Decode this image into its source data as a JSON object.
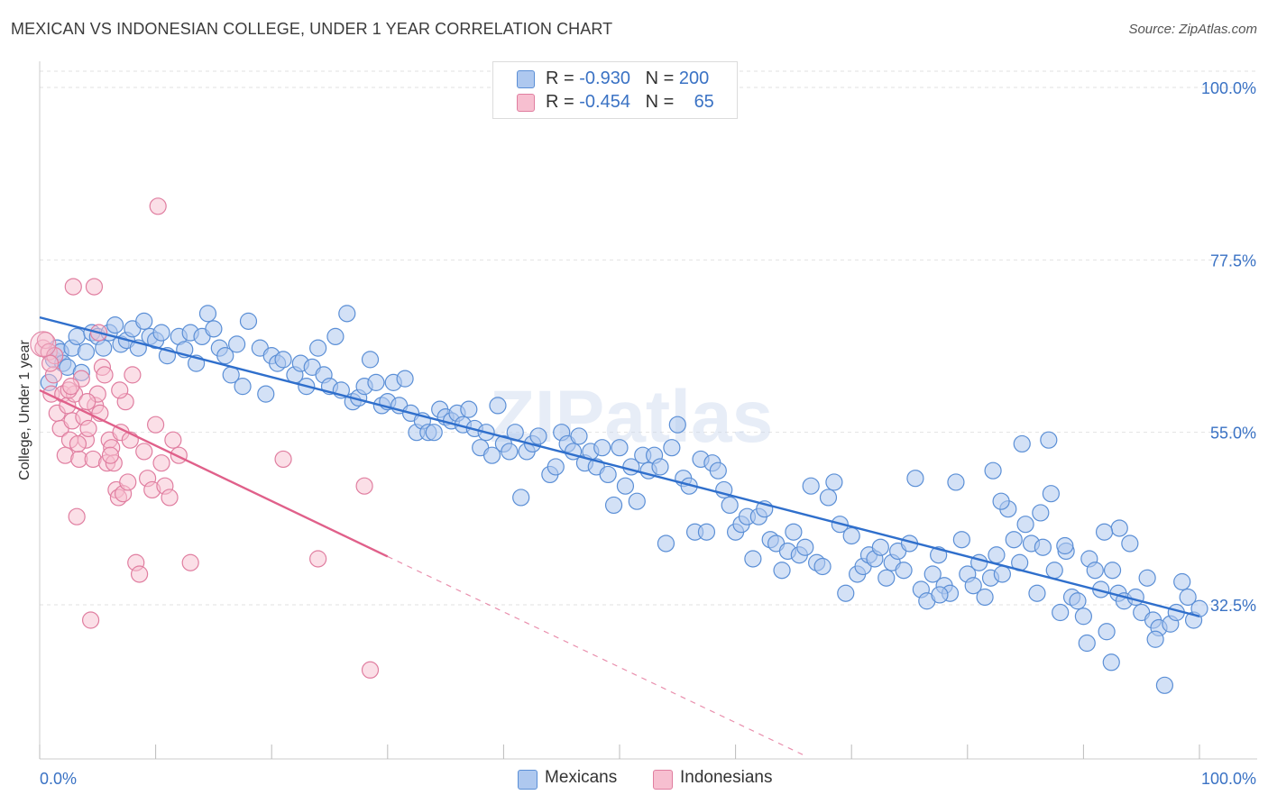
{
  "title": "MEXICAN VS INDONESIAN COLLEGE, UNDER 1 YEAR CORRELATION CHART",
  "source": "Source: ZipAtlas.com",
  "watermark": "ZIPatlas",
  "colors": {
    "blue_fill": "#aec8ef",
    "blue_stroke": "#5b8fd6",
    "blue_line": "#2f6fcc",
    "pink_fill": "#f7bfd0",
    "pink_stroke": "#e07ea0",
    "pink_line": "#e0608a",
    "axis_text_blue": "#3a72c4",
    "grid": "#e2e2e2"
  },
  "legend_top": [
    {
      "r_label": "R = ",
      "r_value": "-0.930",
      "n_label": "N = ",
      "n_value": "200",
      "series": "Mexicans"
    },
    {
      "r_label": "R = ",
      "r_value": "-0.454",
      "n_label": "N = ",
      "n_value": "65",
      "series": "Indonesians"
    }
  ],
  "legend_bottom": [
    "Mexicans",
    "Indonesians"
  ],
  "chart_data": {
    "type": "scatter",
    "title": "MEXICAN VS INDONESIAN COLLEGE, UNDER 1 YEAR CORRELATION CHART",
    "xlabel": "",
    "ylabel": "College, Under 1 year",
    "xlim": [
      0,
      100
    ],
    "ylim": [
      11.5,
      104
    ],
    "x_tick_labels": [
      "0.0%",
      "100.0%"
    ],
    "y_ticks": [
      100.0,
      77.5,
      55.0,
      32.5
    ],
    "y_tick_labels": [
      "100.0%",
      "77.5%",
      "55.0%",
      "32.5%"
    ],
    "grid": true,
    "legend": "top-center",
    "series": [
      {
        "name": "Mexicans",
        "r": -0.93,
        "n": 200,
        "trend": {
          "x": [
            0,
            100
          ],
          "y": [
            70.0,
            31.0
          ],
          "dashed_from": null
        },
        "points": [
          [
            0.8,
            61.5
          ],
          [
            1.2,
            64.5
          ],
          [
            1.5,
            66.0
          ],
          [
            1.8,
            65.5
          ],
          [
            2.0,
            64.0
          ],
          [
            2.4,
            63.5
          ],
          [
            2.8,
            66.0
          ],
          [
            3.2,
            67.5
          ],
          [
            3.6,
            62.8
          ],
          [
            4.0,
            65.5
          ],
          [
            4.5,
            68.0
          ],
          [
            5.0,
            67.5
          ],
          [
            5.5,
            66.0
          ],
          [
            6.0,
            68.0
          ],
          [
            6.5,
            69.0
          ],
          [
            7.0,
            66.5
          ],
          [
            7.5,
            67.0
          ],
          [
            8.0,
            68.5
          ],
          [
            8.5,
            66.0
          ],
          [
            9.0,
            69.5
          ],
          [
            9.5,
            67.5
          ],
          [
            10.0,
            67.0
          ],
          [
            10.5,
            68.0
          ],
          [
            11.0,
            65.0
          ],
          [
            12.0,
            67.5
          ],
          [
            12.5,
            65.8
          ],
          [
            13.0,
            68.0
          ],
          [
            13.5,
            64.0
          ],
          [
            14.0,
            67.5
          ],
          [
            14.5,
            70.5
          ],
          [
            15.0,
            68.5
          ],
          [
            15.5,
            66.0
          ],
          [
            16.0,
            65.0
          ],
          [
            16.5,
            62.5
          ],
          [
            17.0,
            66.5
          ],
          [
            17.5,
            61.0
          ],
          [
            18.0,
            69.5
          ],
          [
            19.0,
            66.0
          ],
          [
            19.5,
            60.0
          ],
          [
            20.0,
            65.0
          ],
          [
            20.5,
            64.0
          ],
          [
            21.0,
            64.5
          ],
          [
            22.0,
            62.5
          ],
          [
            22.5,
            64.0
          ],
          [
            23.0,
            61.0
          ],
          [
            23.5,
            63.5
          ],
          [
            24.0,
            66.0
          ],
          [
            24.5,
            62.5
          ],
          [
            25.0,
            61.0
          ],
          [
            25.5,
            67.5
          ],
          [
            26.0,
            60.5
          ],
          [
            26.5,
            70.5
          ],
          [
            27.0,
            59.0
          ],
          [
            27.5,
            59.5
          ],
          [
            28.0,
            61.0
          ],
          [
            28.5,
            64.5
          ],
          [
            29.0,
            61.5
          ],
          [
            29.5,
            58.5
          ],
          [
            30.0,
            59.0
          ],
          [
            30.5,
            61.5
          ],
          [
            31.0,
            58.5
          ],
          [
            31.5,
            62.0
          ],
          [
            32.0,
            57.5
          ],
          [
            32.5,
            55.0
          ],
          [
            33.0,
            56.5
          ],
          [
            33.5,
            55.0
          ],
          [
            34.0,
            55.0
          ],
          [
            34.5,
            58.0
          ],
          [
            35.0,
            57.0
          ],
          [
            35.5,
            56.5
          ],
          [
            36.0,
            57.5
          ],
          [
            36.5,
            56.0
          ],
          [
            37.0,
            58.0
          ],
          [
            37.5,
            55.5
          ],
          [
            38.0,
            53.0
          ],
          [
            38.5,
            55.0
          ],
          [
            39.0,
            52.0
          ],
          [
            39.5,
            58.5
          ],
          [
            40.0,
            53.5
          ],
          [
            40.5,
            52.5
          ],
          [
            41.0,
            55.0
          ],
          [
            41.5,
            46.5
          ],
          [
            42.0,
            52.5
          ],
          [
            42.5,
            53.5
          ],
          [
            43.0,
            54.5
          ],
          [
            44.0,
            49.5
          ],
          [
            44.5,
            50.5
          ],
          [
            45.0,
            55.0
          ],
          [
            45.5,
            53.5
          ],
          [
            46.0,
            52.5
          ],
          [
            46.5,
            54.5
          ],
          [
            47.0,
            51.0
          ],
          [
            47.5,
            52.5
          ],
          [
            48.0,
            50.5
          ],
          [
            48.5,
            53.0
          ],
          [
            49.0,
            49.5
          ],
          [
            49.5,
            45.5
          ],
          [
            50.0,
            53.0
          ],
          [
            50.5,
            48.0
          ],
          [
            51.0,
            50.5
          ],
          [
            51.5,
            46.0
          ],
          [
            52.0,
            52.0
          ],
          [
            52.5,
            50.0
          ],
          [
            53.0,
            52.0
          ],
          [
            53.5,
            50.5
          ],
          [
            54.0,
            40.5
          ],
          [
            54.5,
            53.0
          ],
          [
            55.0,
            56.0
          ],
          [
            55.5,
            49.0
          ],
          [
            56.0,
            48.0
          ],
          [
            56.5,
            42.0
          ],
          [
            57.0,
            51.5
          ],
          [
            57.5,
            42.0
          ],
          [
            58.0,
            51.0
          ],
          [
            58.5,
            50.0
          ],
          [
            59.0,
            47.5
          ],
          [
            59.5,
            45.5
          ],
          [
            60.0,
            42.0
          ],
          [
            60.5,
            43.0
          ],
          [
            61.0,
            44.0
          ],
          [
            61.5,
            38.5
          ],
          [
            62.0,
            44.0
          ],
          [
            62.5,
            45.0
          ],
          [
            63.0,
            41.0
          ],
          [
            63.5,
            40.5
          ],
          [
            64.0,
            37.0
          ],
          [
            64.5,
            39.5
          ],
          [
            65.0,
            42.0
          ],
          [
            65.5,
            39.0
          ],
          [
            66.0,
            40.0
          ],
          [
            66.5,
            48.0
          ],
          [
            67.0,
            38.0
          ],
          [
            67.5,
            37.5
          ],
          [
            68.0,
            46.5
          ],
          [
            68.5,
            48.5
          ],
          [
            69.0,
            43.0
          ],
          [
            69.5,
            34.0
          ],
          [
            70.0,
            41.5
          ],
          [
            70.5,
            36.5
          ],
          [
            71.0,
            37.5
          ],
          [
            71.5,
            39.0
          ],
          [
            72.0,
            38.5
          ],
          [
            72.5,
            40.0
          ],
          [
            73.0,
            36.0
          ],
          [
            73.5,
            38.0
          ],
          [
            74.0,
            39.5
          ],
          [
            74.5,
            37.0
          ],
          [
            75.0,
            40.5
          ],
          [
            75.5,
            49.0
          ],
          [
            76.0,
            34.5
          ],
          [
            76.5,
            33.0
          ],
          [
            77.0,
            36.5
          ],
          [
            77.5,
            39.0
          ],
          [
            78.0,
            35.0
          ],
          [
            78.5,
            34.0
          ],
          [
            79.0,
            48.5
          ],
          [
            79.5,
            41.0
          ],
          [
            80.0,
            36.5
          ],
          [
            80.5,
            35.0
          ],
          [
            81.0,
            38.0
          ],
          [
            81.5,
            33.5
          ],
          [
            82.0,
            36.0
          ],
          [
            82.5,
            39.0
          ],
          [
            83.0,
            36.5
          ],
          [
            83.5,
            45.0
          ],
          [
            84.0,
            41.0
          ],
          [
            84.5,
            38.0
          ],
          [
            85.0,
            43.0
          ],
          [
            85.5,
            40.5
          ],
          [
            86.0,
            34.0
          ],
          [
            86.5,
            40.0
          ],
          [
            87.0,
            54.0
          ],
          [
            87.5,
            37.0
          ],
          [
            88.0,
            31.5
          ],
          [
            88.5,
            39.5
          ],
          [
            89.0,
            33.5
          ],
          [
            89.5,
            33.0
          ],
          [
            90.0,
            31.0
          ],
          [
            90.5,
            38.5
          ],
          [
            91.0,
            37.0
          ],
          [
            91.5,
            34.5
          ],
          [
            92.0,
            29.0
          ],
          [
            92.5,
            37.0
          ],
          [
            93.0,
            34.0
          ],
          [
            93.5,
            33.0
          ],
          [
            94.0,
            40.5
          ],
          [
            94.5,
            33.5
          ],
          [
            95.0,
            31.5
          ],
          [
            95.5,
            36.0
          ],
          [
            96.0,
            30.5
          ],
          [
            96.5,
            29.5
          ],
          [
            97.0,
            22.0
          ],
          [
            97.5,
            30.0
          ],
          [
            98.0,
            31.5
          ],
          [
            98.5,
            35.5
          ],
          [
            99.0,
            33.5
          ],
          [
            99.5,
            30.5
          ],
          [
            100.0,
            32.0
          ],
          [
            96.2,
            28.0
          ],
          [
            90.3,
            27.5
          ],
          [
            92.4,
            25.0
          ],
          [
            77.6,
            33.8
          ],
          [
            86.3,
            44.5
          ],
          [
            93.1,
            42.5
          ],
          [
            84.7,
            53.5
          ],
          [
            82.2,
            50.0
          ],
          [
            82.9,
            46.0
          ],
          [
            87.2,
            47.0
          ],
          [
            88.4,
            40.2
          ],
          [
            91.8,
            42.0
          ]
        ]
      },
      {
        "name": "Indonesians",
        "r": -0.454,
        "n": 65,
        "trend": {
          "x": [
            0,
            30
          ],
          "y": [
            60.5,
            38.8
          ],
          "dashed_to": [
            66.0,
            12.8
          ]
        },
        "points": [
          [
            0.3,
            66.0
          ],
          [
            0.5,
            67.0
          ],
          [
            0.8,
            65.5
          ],
          [
            1.0,
            60.0
          ],
          [
            1.2,
            62.5
          ],
          [
            1.5,
            57.5
          ],
          [
            1.8,
            55.5
          ],
          [
            2.0,
            60.0
          ],
          [
            2.2,
            52.0
          ],
          [
            2.4,
            58.5
          ],
          [
            2.6,
            54.0
          ],
          [
            2.8,
            56.5
          ],
          [
            3.0,
            60.0
          ],
          [
            3.2,
            44.0
          ],
          [
            3.4,
            51.5
          ],
          [
            3.6,
            62.0
          ],
          [
            3.8,
            57.0
          ],
          [
            4.0,
            54.0
          ],
          [
            4.2,
            55.5
          ],
          [
            4.4,
            30.5
          ],
          [
            4.6,
            51.5
          ],
          [
            4.8,
            58.5
          ],
          [
            5.0,
            60.0
          ],
          [
            5.2,
            57.5
          ],
          [
            5.4,
            63.5
          ],
          [
            5.6,
            62.5
          ],
          [
            5.8,
            51.0
          ],
          [
            6.0,
            54.0
          ],
          [
            6.2,
            53.0
          ],
          [
            6.4,
            51.0
          ],
          [
            6.6,
            47.5
          ],
          [
            6.8,
            46.5
          ],
          [
            7.0,
            55.0
          ],
          [
            7.2,
            47.0
          ],
          [
            7.4,
            59.0
          ],
          [
            7.6,
            48.5
          ],
          [
            7.8,
            54.0
          ],
          [
            8.0,
            62.5
          ],
          [
            8.3,
            38.0
          ],
          [
            8.6,
            36.5
          ],
          [
            9.0,
            52.5
          ],
          [
            9.3,
            49.0
          ],
          [
            9.7,
            47.5
          ],
          [
            10.0,
            56.0
          ],
          [
            10.5,
            51.0
          ],
          [
            10.8,
            48.0
          ],
          [
            11.2,
            46.5
          ],
          [
            11.5,
            54.0
          ],
          [
            12.0,
            52.0
          ],
          [
            13.0,
            38.0
          ],
          [
            2.5,
            60.5
          ],
          [
            3.3,
            53.5
          ],
          [
            4.1,
            59.0
          ],
          [
            5.1,
            68.0
          ],
          [
            6.1,
            52.0
          ],
          [
            1.3,
            65.0
          ],
          [
            0.9,
            64.0
          ],
          [
            2.7,
            61.0
          ],
          [
            6.9,
            60.5
          ],
          [
            10.2,
            84.5
          ],
          [
            2.9,
            74.0
          ],
          [
            4.7,
            74.0
          ],
          [
            21.0,
            51.5
          ],
          [
            24.0,
            38.5
          ],
          [
            28.0,
            48.0
          ]
        ]
      }
    ],
    "extra_points_indonesians": [
      [
        28.5,
        24.0
      ]
    ]
  }
}
